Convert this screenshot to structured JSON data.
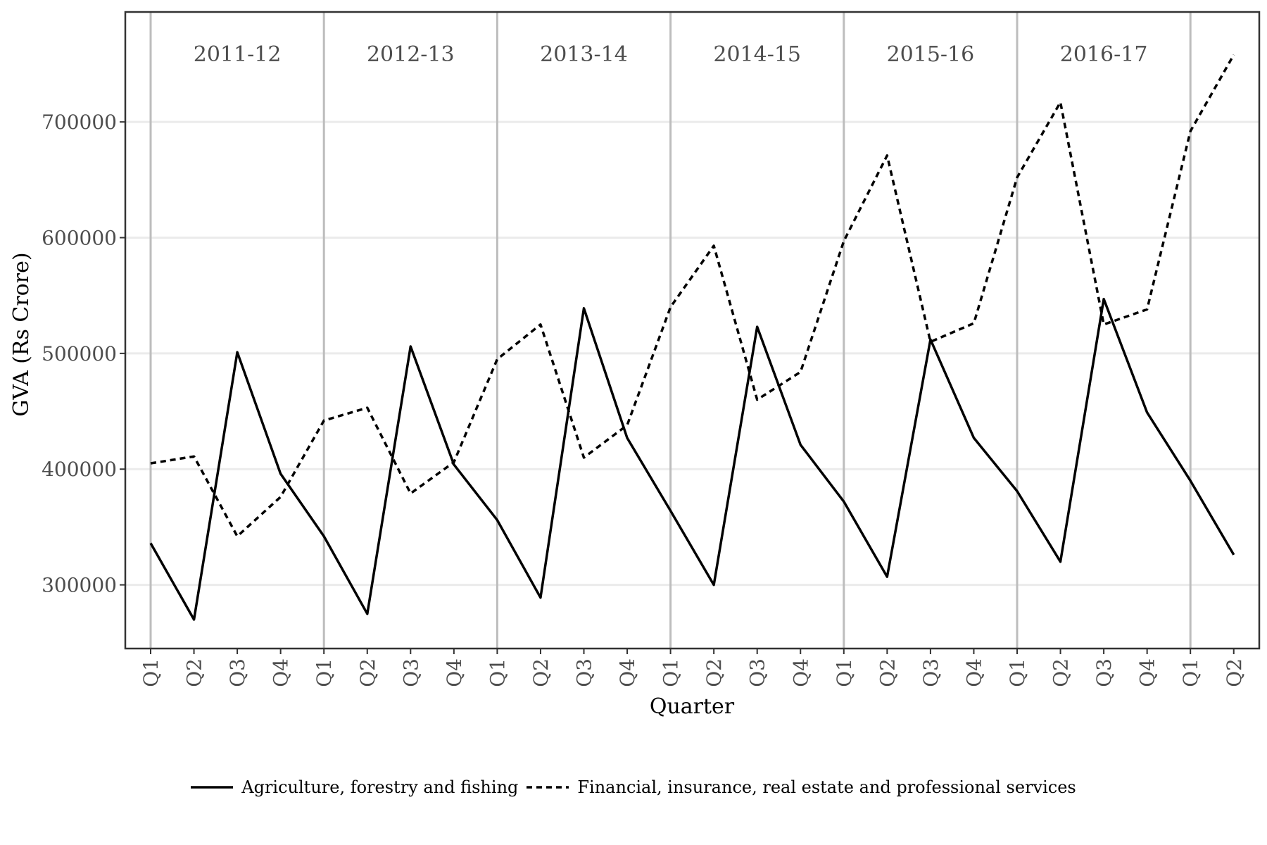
{
  "chart_data": {
    "type": "line",
    "title": "",
    "xlabel": "Quarter",
    "ylabel": "GVA (Rs Crore)",
    "ylim": [
      245000,
      795000
    ],
    "y_ticks": [
      300000,
      400000,
      500000,
      600000,
      700000
    ],
    "grid": true,
    "legend_position": "bottom",
    "fiscal_years": [
      "2011-12",
      "2012-13",
      "2013-14",
      "2014-15",
      "2015-16",
      "2016-17"
    ],
    "categories": [
      "Q1",
      "Q2",
      "Q3",
      "Q4",
      "Q1",
      "Q2",
      "Q3",
      "Q4",
      "Q1",
      "Q2",
      "Q3",
      "Q4",
      "Q1",
      "Q2",
      "Q3",
      "Q4",
      "Q1",
      "Q2",
      "Q3",
      "Q4",
      "Q1",
      "Q2",
      "Q3",
      "Q4",
      "Q1",
      "Q2"
    ],
    "series": [
      {
        "name": "Agriculture, forestry and fishing",
        "line_style": "solid",
        "color": "#000000",
        "values": [
          336000,
          270000,
          501000,
          396000,
          342000,
          275000,
          506000,
          404000,
          356000,
          289000,
          539000,
          427000,
          364000,
          300000,
          523000,
          421000,
          372000,
          307000,
          512000,
          427000,
          381000,
          320000,
          547000,
          449000,
          390000,
          326000
        ]
      },
      {
        "name": "Financial, insurance, real estate and professional services",
        "line_style": "dashed",
        "color": "#000000",
        "values": [
          405000,
          411000,
          342000,
          376000,
          442000,
          453000,
          379000,
          406000,
          495000,
          525000,
          410000,
          438000,
          540000,
          593000,
          460000,
          484000,
          597000,
          671000,
          510000,
          526000,
          652000,
          717000,
          525000,
          538000,
          692000,
          758000
        ]
      }
    ]
  }
}
